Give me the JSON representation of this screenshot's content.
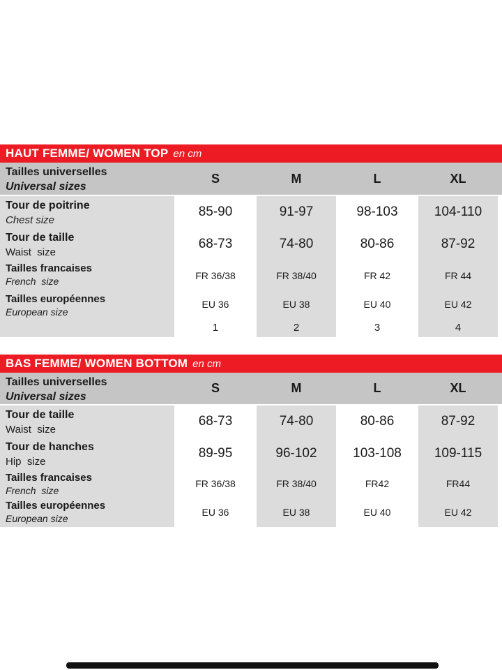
{
  "colors": {
    "accent_red": "#ED1C24",
    "header_gray": "#c5c5c5",
    "stripe_gray": "#dcdcdc",
    "stripe_white": "#ffffff",
    "text": "#1a1a1a",
    "scrollbar_black": "#111111"
  },
  "sections": [
    {
      "title": "HAUT FEMME/ WOMEN TOP",
      "unit": "en cm",
      "size_row": {
        "label_fr": "Tailles universelles",
        "label_en": "Universal sizes",
        "columns": [
          "S",
          "M",
          "L",
          "XL"
        ]
      },
      "rows": [
        {
          "label_fr": "Tour de poitrine",
          "label_en": "Chest size",
          "values": [
            "85-90",
            "91-97",
            "98-103",
            "104-110"
          ]
        },
        {
          "label_fr": "Tour de taille",
          "label_en": "Waist  size",
          "values": [
            "68-73",
            "74-80",
            "80-86",
            "87-92"
          ]
        },
        {
          "label_fr": "Tailles francaises",
          "label_en": "French  size",
          "values": [
            "FR 36/38",
            "FR 38/40",
            "FR 42",
            "FR 44"
          ]
        },
        {
          "label_fr": "Tailles européennes",
          "label_en": "European size",
          "values": [
            "EU 36",
            "EU 38",
            "EU 40",
            "EU 42"
          ]
        },
        {
          "label_fr": "",
          "label_en": "",
          "values": [
            "1",
            "2",
            "3",
            "4"
          ]
        }
      ]
    },
    {
      "title": "BAS FEMME/ WOMEN BOTTOM",
      "unit": "en cm",
      "size_row": {
        "label_fr": "Tailles universelles",
        "label_en": "Universal sizes",
        "columns": [
          "S",
          "M",
          "L",
          "XL"
        ]
      },
      "rows": [
        {
          "label_fr": "Tour de taille",
          "label_en": "Waist  size",
          "values": [
            "68-73",
            "74-80",
            "80-86",
            "87-92"
          ]
        },
        {
          "label_fr": "Tour de hanches",
          "label_en": "Hip  size",
          "values": [
            "89-95",
            "96-102",
            "103-108",
            "109-115"
          ]
        },
        {
          "label_fr": "Tailles francaises",
          "label_en": "French  size",
          "values": [
            "FR 36/38",
            "FR 38/40",
            "FR42",
            "FR44"
          ]
        },
        {
          "label_fr": "Tailles européennes",
          "label_en": "European size",
          "values": [
            "EU 36",
            "EU 38",
            "EU 40",
            "EU 42"
          ]
        }
      ]
    }
  ]
}
